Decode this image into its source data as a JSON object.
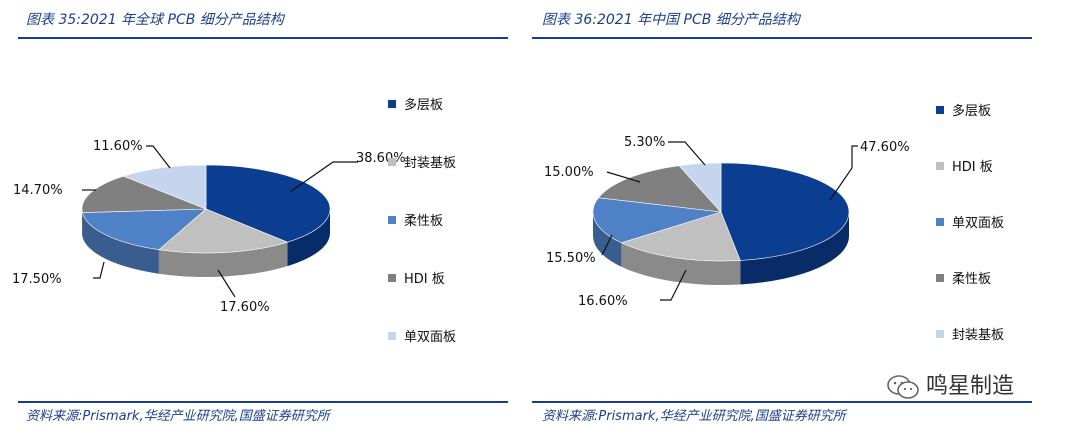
{
  "left": {
    "title": "图表 35:2021 年全球 PCB 细分产品结构",
    "source": "资料来源:Prismark,华经产业研究院,国盛证券研究所"
  },
  "right": {
    "title": "图表 36:2021 年中国 PCB 细分产品结构",
    "source": "资料来源:Prismark,华经产业研究院,国盛证券研究所"
  },
  "watermark": "鸣星制造",
  "chart_data": [
    {
      "type": "pie",
      "title": "图表 35:2021 年全球 PCB 细分产品结构",
      "categories": [
        "多层板",
        "封装基板",
        "柔性板",
        "HDI 板",
        "单双面板"
      ],
      "values": [
        38.6,
        17.6,
        17.5,
        14.7,
        11.6
      ],
      "value_labels": [
        "38.60%",
        "17.60%",
        "17.50%",
        "14.70%",
        "11.60%"
      ],
      "colors": [
        "#0b3d91",
        "#c0c0c0",
        "#4f81c7",
        "#808080",
        "#c5d5ee"
      ],
      "legend": "right"
    },
    {
      "type": "pie",
      "title": "图表 36:2021 年中国 PCB 细分产品结构",
      "categories": [
        "多层板",
        "HDI 板",
        "单双面板",
        "柔性板",
        "封装基板"
      ],
      "values": [
        47.6,
        16.6,
        15.5,
        15.0,
        5.3
      ],
      "value_labels": [
        "47.60%",
        "16.60%",
        "15.50%",
        "15.00%",
        "5.30%"
      ],
      "colors": [
        "#0b3d91",
        "#c0c0c0",
        "#4f81c7",
        "#808080",
        "#c5d5ee"
      ],
      "legend": "right"
    }
  ]
}
